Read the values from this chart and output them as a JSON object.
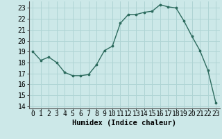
{
  "x": [
    0,
    1,
    2,
    3,
    4,
    5,
    6,
    7,
    8,
    9,
    10,
    11,
    12,
    13,
    14,
    15,
    16,
    17,
    18,
    19,
    20,
    21,
    22,
    23
  ],
  "y": [
    19,
    18.2,
    18.5,
    18.0,
    17.1,
    16.8,
    16.8,
    16.9,
    17.8,
    19.1,
    19.5,
    21.6,
    22.4,
    22.4,
    22.6,
    22.7,
    23.3,
    23.1,
    23.0,
    21.8,
    20.4,
    19.1,
    17.3,
    14.3
  ],
  "xlabel": "Humidex (Indice chaleur)",
  "xlim": [
    -0.5,
    23.5
  ],
  "ylim": [
    13.8,
    23.6
  ],
  "yticks": [
    14,
    15,
    16,
    17,
    18,
    19,
    20,
    21,
    22,
    23
  ],
  "xticks": [
    0,
    1,
    2,
    3,
    4,
    5,
    6,
    7,
    8,
    9,
    10,
    11,
    12,
    13,
    14,
    15,
    16,
    17,
    18,
    19,
    20,
    21,
    22,
    23
  ],
  "line_color": "#2d6b5e",
  "marker_color": "#2d6b5e",
  "bg_color": "#cce8e8",
  "grid_color": "#afd4d4",
  "label_fontsize": 7.5,
  "tick_fontsize": 7.0
}
